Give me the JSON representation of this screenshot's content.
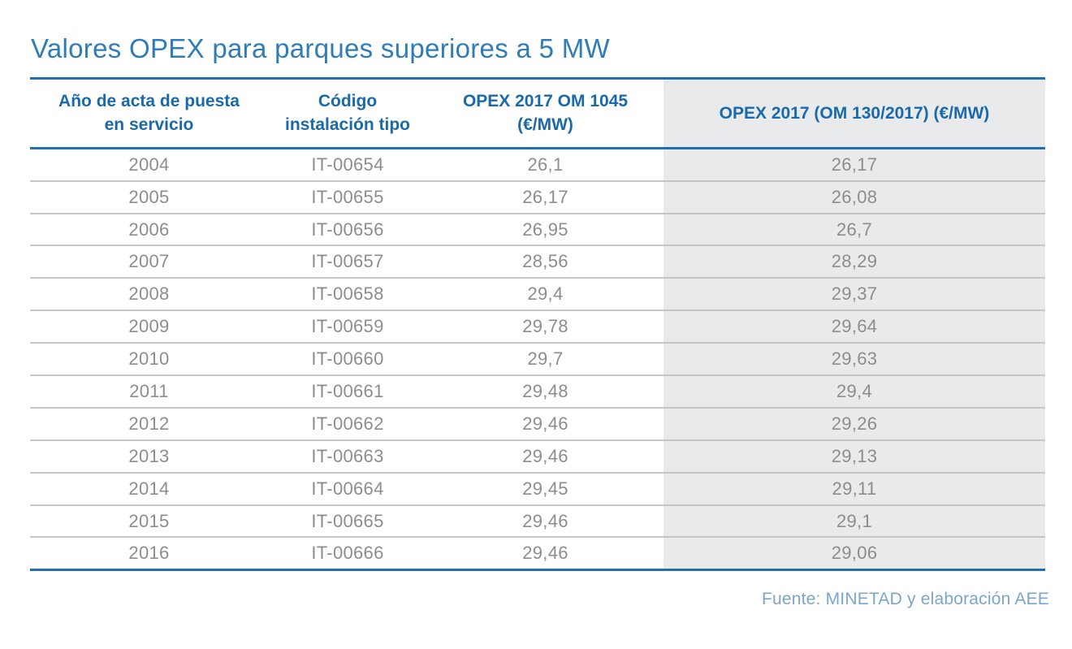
{
  "title": "Valores OPEX para parques superiores a 5 MW",
  "footer": {
    "source": "Fuente: MINETAD y elaboración AEE"
  },
  "colors": {
    "accent_blue": "#2170ae",
    "title_blue": "#2e7cb8",
    "header_blue": "#1a6aab",
    "text_gray": "#8d8d8d",
    "shade_bg": "#e9eaec",
    "sep_gray": "#c6c6c6",
    "footer_blue": "#7aa6cc"
  },
  "table": {
    "columns": [
      {
        "label": "Año de acta de puesta\nen servicio"
      },
      {
        "label": "Código\ninstalación tipo"
      },
      {
        "label": "OPEX 2017 OM 1045\n(€/MW)"
      },
      {
        "label": "OPEX 2017 (OM 130/2017) (€/MW)"
      }
    ],
    "rows": [
      {
        "year": "2004",
        "code": "IT-00654",
        "opex_om1045": "26,1",
        "opex_om130": "26,17"
      },
      {
        "year": "2005",
        "code": "IT-00655",
        "opex_om1045": "26,17",
        "opex_om130": "26,08"
      },
      {
        "year": "2006",
        "code": "IT-00656",
        "opex_om1045": "26,95",
        "opex_om130": "26,7"
      },
      {
        "year": "2007",
        "code": "IT-00657",
        "opex_om1045": "28,56",
        "opex_om130": "28,29"
      },
      {
        "year": "2008",
        "code": "IT-00658",
        "opex_om1045": "29,4",
        "opex_om130": "29,37"
      },
      {
        "year": "2009",
        "code": "IT-00659",
        "opex_om1045": "29,78",
        "opex_om130": "29,64"
      },
      {
        "year": "2010",
        "code": "IT-00660",
        "opex_om1045": "29,7",
        "opex_om130": "29,63"
      },
      {
        "year": "2011",
        "code": "IT-00661",
        "opex_om1045": "29,48",
        "opex_om130": "29,4"
      },
      {
        "year": "2012",
        "code": "IT-00662",
        "opex_om1045": "29,46",
        "opex_om130": "29,26"
      },
      {
        "year": "2013",
        "code": "IT-00663",
        "opex_om1045": "29,46",
        "opex_om130": "29,13"
      },
      {
        "year": "2014",
        "code": "IT-00664",
        "opex_om1045": "29,45",
        "opex_om130": "29,11"
      },
      {
        "year": "2015",
        "code": "IT-00665",
        "opex_om1045": "29,46",
        "opex_om130": "29,1"
      },
      {
        "year": "2016",
        "code": "IT-00666",
        "opex_om1045": "29,46",
        "opex_om130": "29,06"
      }
    ]
  },
  "chart_data": {
    "type": "table",
    "title": "Valores OPEX para parques superiores a 5 MW",
    "columns": [
      "Año de acta de puesta en servicio",
      "Código instalación tipo",
      "OPEX 2017 OM 1045 (€/MW)",
      "OPEX 2017 (OM 130/2017) (€/MW)"
    ],
    "rows": [
      [
        "2004",
        "IT-00654",
        26.1,
        26.17
      ],
      [
        "2005",
        "IT-00655",
        26.17,
        26.08
      ],
      [
        "2006",
        "IT-00656",
        26.95,
        26.7
      ],
      [
        "2007",
        "IT-00657",
        28.56,
        28.29
      ],
      [
        "2008",
        "IT-00658",
        29.4,
        29.37
      ],
      [
        "2009",
        "IT-00659",
        29.78,
        29.64
      ],
      [
        "2010",
        "IT-00660",
        29.7,
        29.63
      ],
      [
        "2011",
        "IT-00661",
        29.48,
        29.4
      ],
      [
        "2012",
        "IT-00662",
        29.46,
        29.26
      ],
      [
        "2013",
        "IT-00663",
        29.46,
        29.13
      ],
      [
        "2014",
        "IT-00664",
        29.45,
        29.11
      ],
      [
        "2015",
        "IT-00665",
        29.46,
        29.1
      ],
      [
        "2016",
        "IT-00666",
        29.46,
        29.06
      ]
    ],
    "decimal_separator": ",",
    "source": "Fuente: MINETAD y elaboración AEE",
    "layout": {
      "shaded_last_column": true,
      "row_lines": true,
      "accent_rules": "top, under header, bottom"
    }
  }
}
